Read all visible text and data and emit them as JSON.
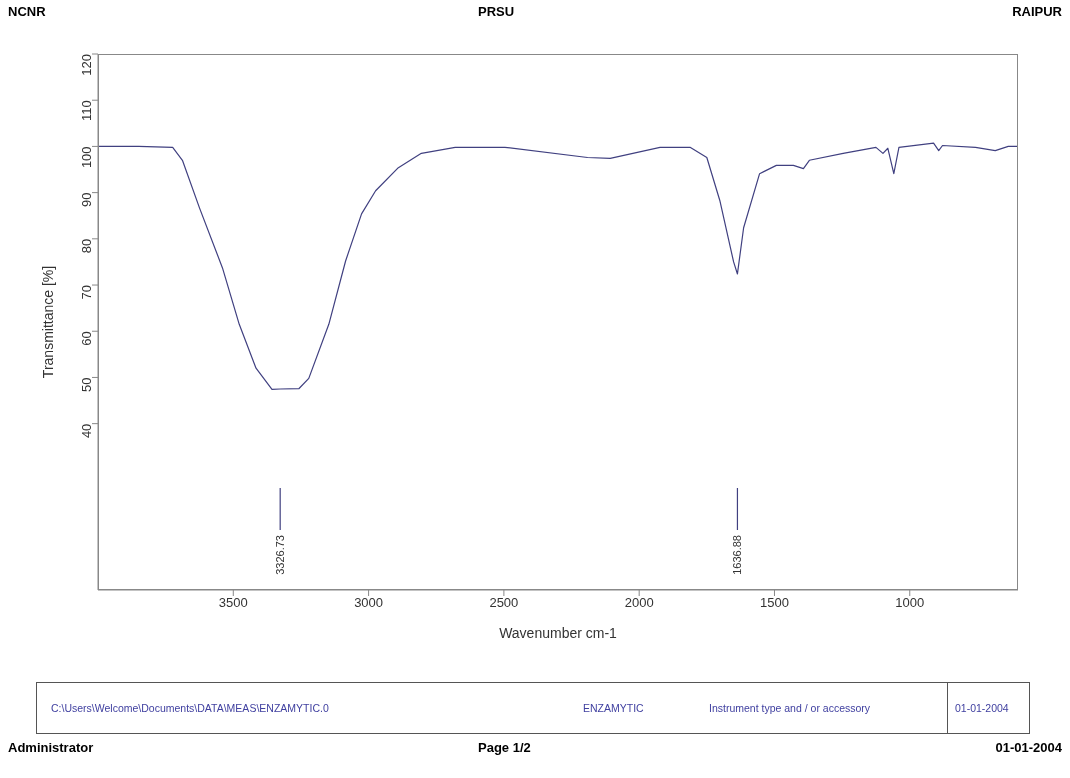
{
  "chart_data": {
    "type": "line",
    "xlabel": "Wavenumber cm-1",
    "ylabel": "Transmittance [%]",
    "xlim": [
      4000,
      600
    ],
    "xticks": [
      3500,
      3000,
      2500,
      2000,
      1500,
      1000
    ],
    "ylim": [
      4,
      120
    ],
    "yticks": [
      40,
      50,
      60,
      70,
      80,
      90,
      100,
      110,
      120
    ],
    "ref_lines": [
      {
        "axis": "x",
        "value": 3326.73,
        "label": "3326.73",
        "color": "#404080"
      },
      {
        "axis": "x",
        "value": 1636.88,
        "label": "1636.88",
        "color": "#404080"
      }
    ],
    "grid": false,
    "legend": false,
    "marker": "none",
    "line_style": "solid",
    "series": [
      {
        "color": "#404080",
        "x": [
          4000,
          3850,
          3724,
          3688,
          3625,
          3540,
          3478,
          3416,
          3357,
          3326.73,
          3257,
          3221,
          3147,
          3085,
          3026,
          2974,
          2890,
          2805,
          2680,
          2496,
          2191,
          2107,
          1923,
          1812,
          1750,
          1702,
          1651,
          1636.88,
          1614,
          1555,
          1493,
          1430,
          1393,
          1371,
          1246,
          1125,
          1099,
          1081,
          1059,
          1040,
          912,
          893,
          879,
          757,
          684,
          636,
          600
        ],
        "values": [
          100,
          100,
          99.8,
          97,
          86.7,
          73.7,
          61.5,
          52,
          47.4,
          47.5,
          47.6,
          49.8,
          61.5,
          75.2,
          85.4,
          90.4,
          95.4,
          98.5,
          99.8,
          99.8,
          97.6,
          97.4,
          99.8,
          99.8,
          97.6,
          88.3,
          75,
          72.4,
          82.4,
          94.1,
          95.9,
          95.9,
          95.2,
          97,
          98.5,
          99.8,
          98.5,
          99.6,
          94.1,
          99.8,
          100.7,
          99.1,
          100.2,
          99.8,
          99.1,
          100,
          100
        ]
      }
    ],
    "annotations": [
      "NCNR",
      "PRSU",
      "RAIPUR",
      "C:\\Users\\Welcome\\Documents\\DATA\\MEAS\\ENZAMYTIC.0",
      "ENZAMYTIC",
      "Instrument type and / or accessory",
      "01-01-2004",
      "Administrator",
      "Page 1/2",
      "01-01-2004"
    ]
  }
}
